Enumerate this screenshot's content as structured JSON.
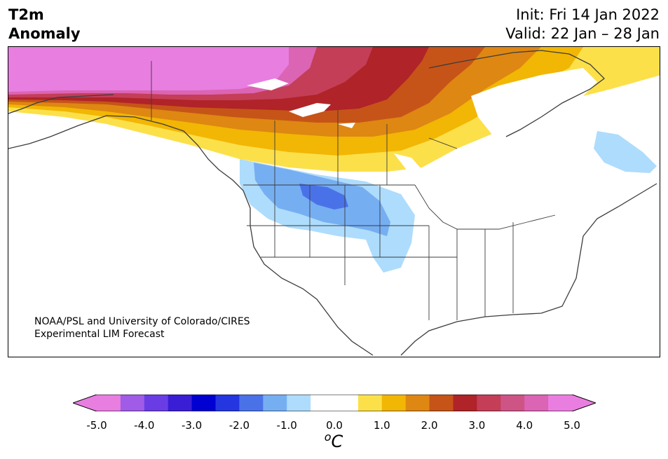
{
  "header": {
    "variable_line1": "T2m",
    "variable_line2": "Anomaly",
    "init": "Init: Fri 14 Jan 2022",
    "valid": "Valid: 22 Jan – 28 Jan"
  },
  "credit": {
    "line1": "NOAA/PSL and University of Colorado/CIRES",
    "line2": "Experimental LIM Forecast"
  },
  "colorbar": {
    "colors": [
      "#e87ee0",
      "#a05ce6",
      "#6a3ce4",
      "#3a1ed6",
      "#0000d2",
      "#2436e0",
      "#4a72e8",
      "#76aef2",
      "#aedcfc",
      "#ffffff",
      "#ffffff",
      "#fce04a",
      "#f2b604",
      "#de8712",
      "#c65418",
      "#b02328",
      "#c43e58",
      "#ce5486",
      "#dc64b4",
      "#ea7ee0"
    ],
    "ticks": [
      "-5.0",
      "-4.0",
      "-3.0",
      "-2.0",
      "-1.0",
      "0.0",
      "1.0",
      "2.0",
      "3.0",
      "4.0",
      "5.0"
    ],
    "unit_base": "C",
    "unit_super": "o"
  },
  "palette": {
    "pink": "#e87ee0",
    "magenta": "#dc64b4",
    "rose": "#c43e58",
    "red": "#b02328",
    "rust": "#c65418",
    "orange": "#de8712",
    "gold": "#f2b604",
    "yellow": "#fce04a",
    "lightblue": "#aedcfc",
    "blue": "#76aef2",
    "midblue": "#4a72e8"
  }
}
